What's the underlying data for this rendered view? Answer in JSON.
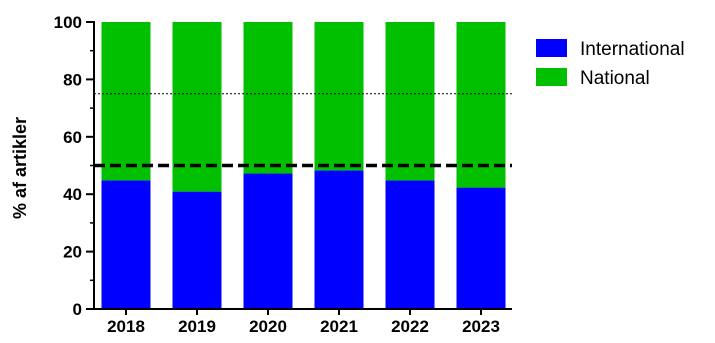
{
  "chart_data": {
    "type": "bar",
    "stacked": true,
    "percent_stacked": true,
    "categories": [
      "2018",
      "2019",
      "2020",
      "2021",
      "2022",
      "2023"
    ],
    "series": [
      {
        "name": "International",
        "color": "#0000ff",
        "values": [
          44.8,
          40.9,
          47.2,
          48.3,
          44.8,
          42.3
        ]
      },
      {
        "name": "National",
        "color": "#00c000",
        "values": [
          55.2,
          59.1,
          52.8,
          51.7,
          55.2,
          57.7
        ]
      }
    ],
    "ylabel": "% af artikler",
    "xlabel": "",
    "title": "",
    "ylim": [
      0,
      100
    ],
    "yticks": [
      0,
      20,
      40,
      60,
      80,
      100
    ],
    "reference_lines": [
      {
        "y": 50,
        "style": "dashed-thick",
        "color": "#000000"
      },
      {
        "y": 75,
        "style": "dotted-thin",
        "color": "#000000"
      }
    ],
    "grid": false,
    "legend_position": "right"
  }
}
